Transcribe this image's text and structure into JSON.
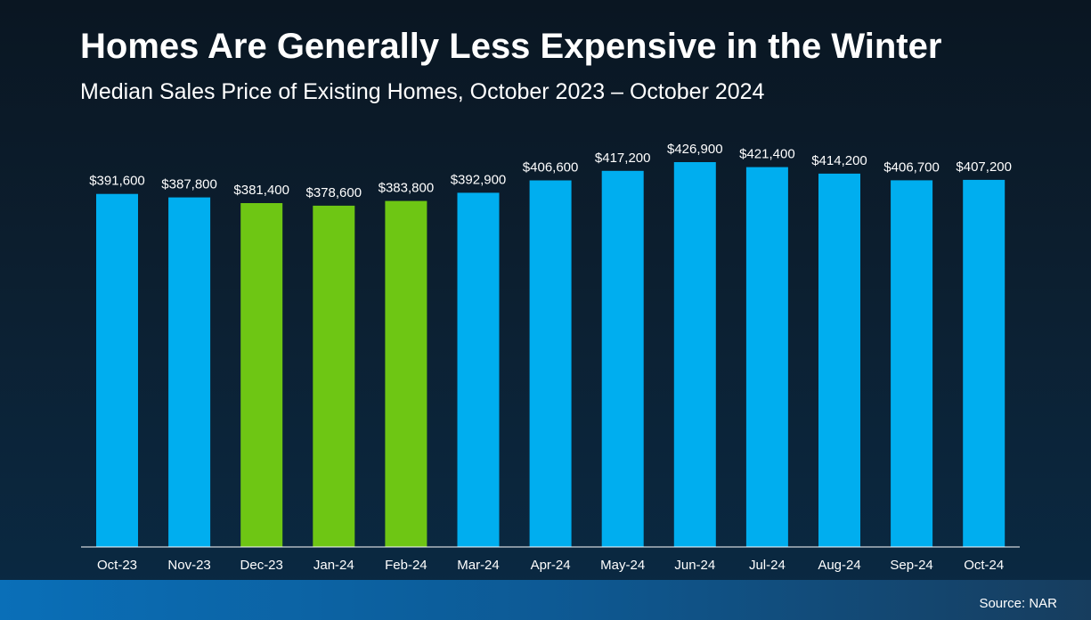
{
  "title": "Homes Are Generally Less Expensive in the Winter",
  "subtitle": "Median Sales Price of Existing Homes, October 2023 – October 2024",
  "source": "Source: NAR",
  "colors": {
    "default_bar": "#00aeef",
    "highlight_bar": "#6ec614",
    "axis": "#ffffff"
  },
  "chart_data": {
    "type": "bar",
    "categories": [
      "Oct-23",
      "Nov-23",
      "Dec-23",
      "Jan-24",
      "Feb-24",
      "Mar-24",
      "Apr-24",
      "May-24",
      "Jun-24",
      "Jul-24",
      "Aug-24",
      "Sep-24",
      "Oct-24"
    ],
    "values": [
      391600,
      387800,
      381400,
      378600,
      383800,
      392900,
      406600,
      417200,
      426900,
      421400,
      414200,
      406700,
      407200
    ],
    "data_labels": [
      "$391,600",
      "$387,800",
      "$381,400",
      "$378,600",
      "$383,800",
      "$392,900",
      "$406,600",
      "$417,200",
      "$426,900",
      "$421,400",
      "$414,200",
      "$406,700",
      "$407,200"
    ],
    "highlighted": [
      "Dec-23",
      "Jan-24",
      "Feb-24"
    ],
    "title": "Homes Are Generally Less Expensive in the Winter",
    "xlabel": "",
    "ylabel": "",
    "grid": false,
    "legend": "none"
  }
}
